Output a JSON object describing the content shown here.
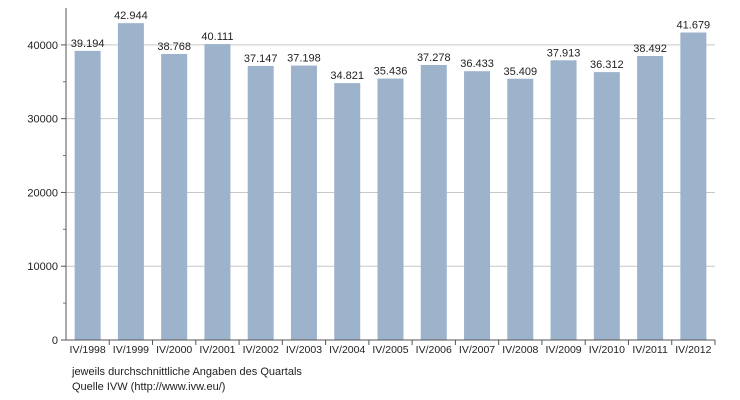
{
  "chart_data": {
    "type": "bar",
    "title": "",
    "xlabel": "",
    "ylabel": "",
    "ylim": [
      0,
      45000
    ],
    "yticks": [
      "0",
      "10000",
      "20000",
      "30000",
      "40000"
    ],
    "grid": "horizontal",
    "legend": "none",
    "bar_color": "#9db3cc",
    "categories": [
      "IV/1998",
      "IV/1999",
      "IV/2000",
      "IV/2001",
      "IV/2002",
      "IV/2003",
      "IV/2004",
      "IV/2005",
      "IV/2006",
      "IV/2007",
      "IV/2008",
      "IV/2009",
      "IV/2010",
      "IV/2011",
      "IV/2012"
    ],
    "values": [
      39194,
      42944,
      38768,
      40111,
      37147,
      37198,
      34821,
      35436,
      37278,
      36433,
      35409,
      37913,
      36312,
      38492,
      41679
    ],
    "value_labels": [
      "39.194",
      "42.944",
      "38.768",
      "40.111",
      "37.147",
      "37.198",
      "34.821",
      "35.436",
      "37.278",
      "36.433",
      "35.409",
      "37.913",
      "36.312",
      "38.492",
      "41.679"
    ]
  },
  "notes": {
    "line1": "jeweils durchschnittliche Angaben des Quartals",
    "line2": "Quelle IVW (http://www.ivw.eu/)"
  }
}
